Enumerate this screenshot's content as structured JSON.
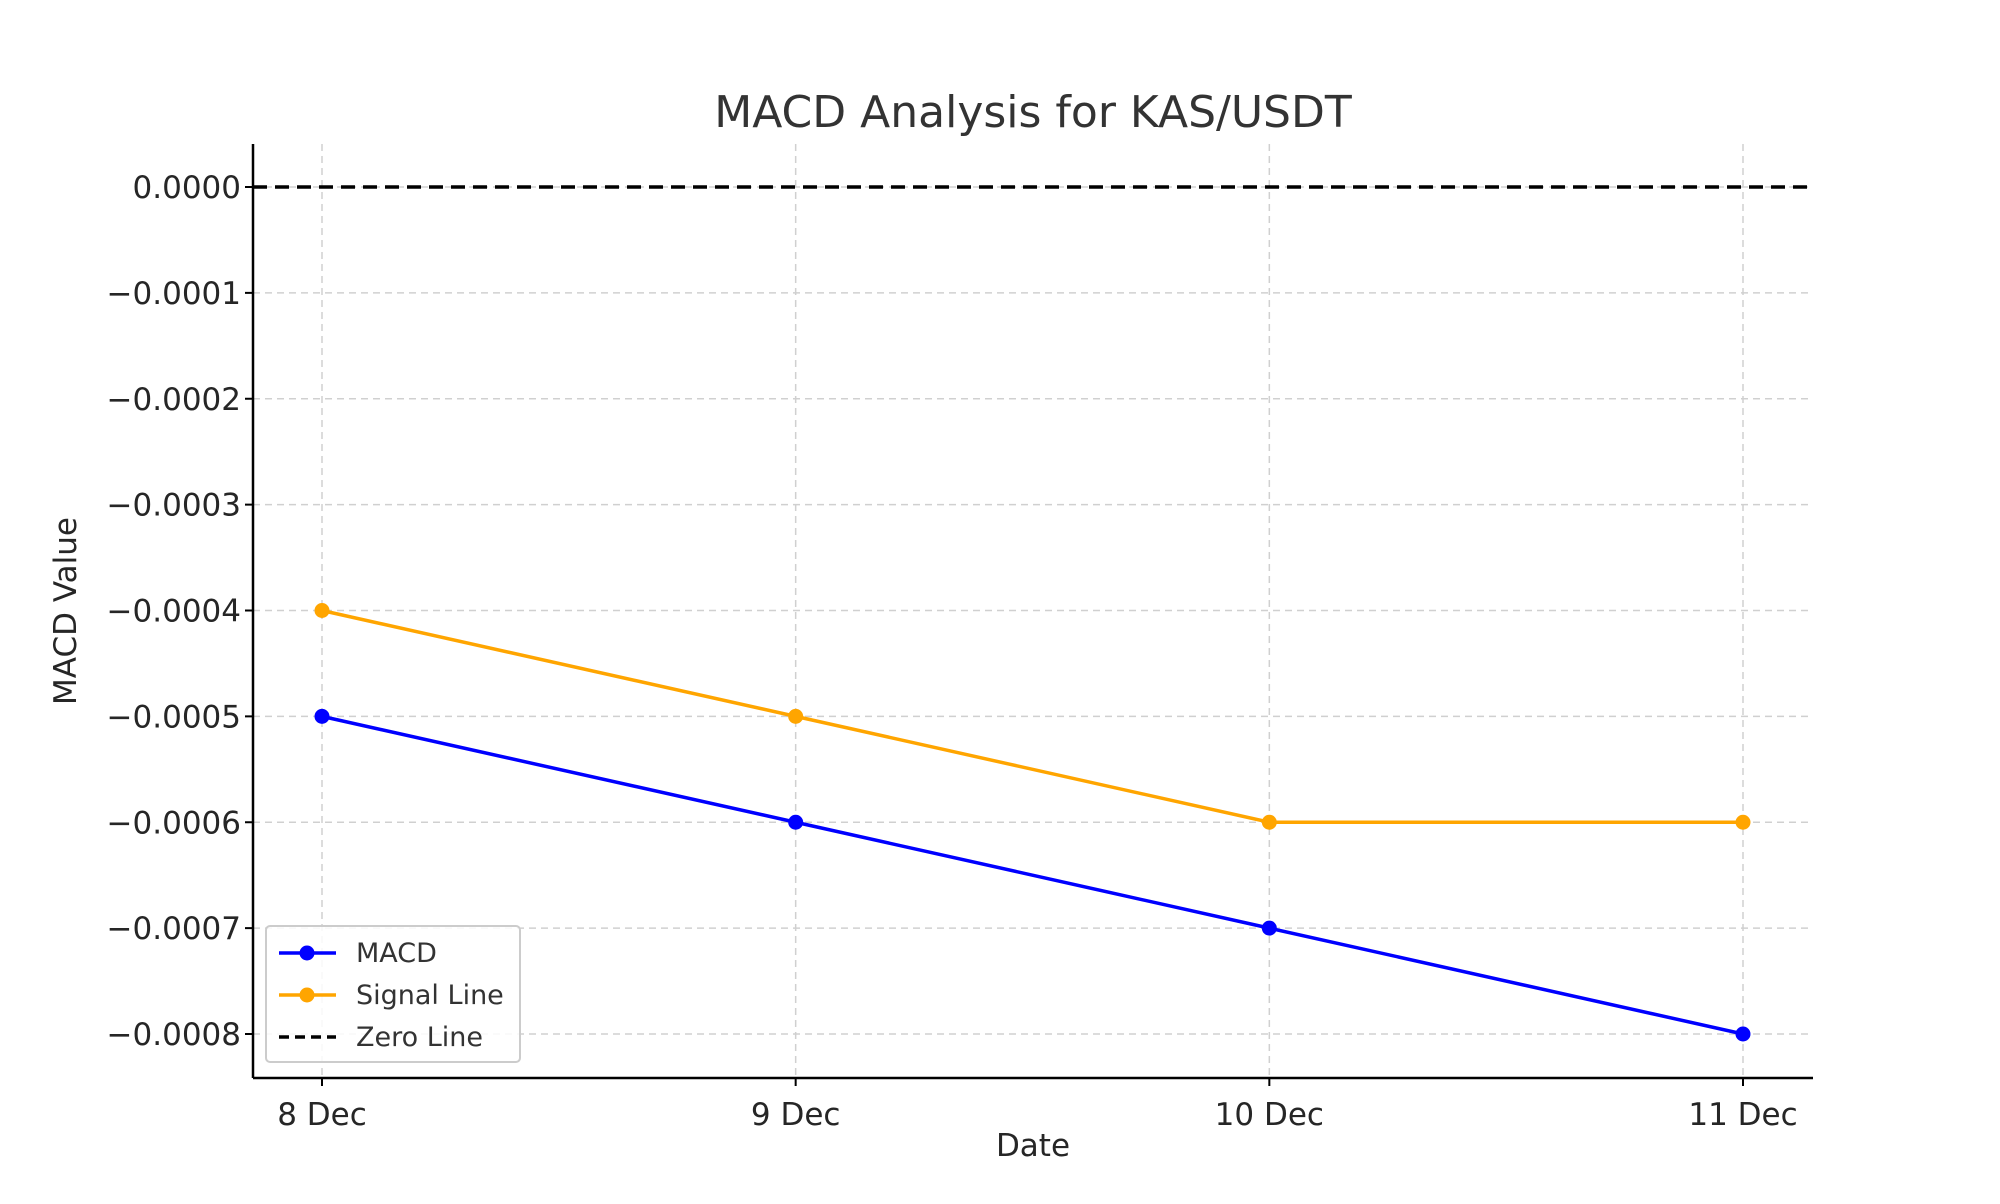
{
  "chart_data": {
    "type": "line",
    "title": "MACD Analysis for KAS/USDT",
    "xlabel": "Date",
    "ylabel": "MACD Value",
    "categories": [
      "8 Dec",
      "9 Dec",
      "10 Dec",
      "11 Dec"
    ],
    "y_ticks": [
      0.0,
      -0.0001,
      -0.0002,
      -0.0003,
      -0.0004,
      -0.0005,
      -0.0006,
      -0.0007,
      -0.0008
    ],
    "y_tick_labels": [
      "0.0000",
      "−0.0001",
      "−0.0002",
      "−0.0003",
      "−0.0004",
      "−0.0005",
      "−0.0006",
      "−0.0007",
      "−0.0008"
    ],
    "ylim": [
      -0.0008,
      0.0
    ],
    "grid": true,
    "legend_position": "lower-left",
    "series": [
      {
        "name": "MACD",
        "values": [
          -0.0005,
          -0.0006,
          -0.0007,
          -0.0008
        ],
        "color": "#0000ff",
        "marker": "circle",
        "style": "solid"
      },
      {
        "name": "Signal Line",
        "values": [
          -0.0004,
          -0.0005,
          -0.0006,
          -0.0006
        ],
        "color": "#ffa500",
        "marker": "circle",
        "style": "solid"
      }
    ],
    "reference_lines": [
      {
        "name": "Zero Line",
        "y": 0.0,
        "color": "#000000",
        "style": "dashed"
      }
    ]
  }
}
